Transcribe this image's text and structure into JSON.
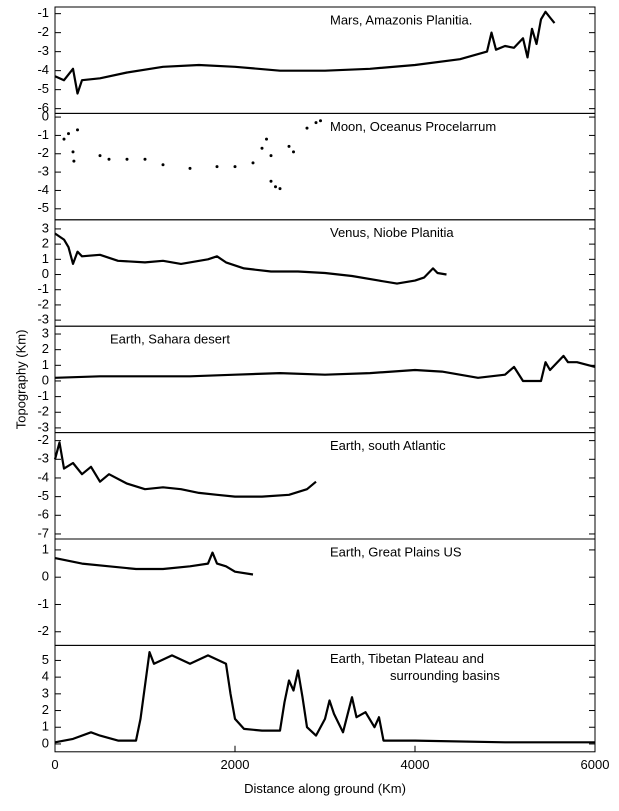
{
  "chart_data": [
    {
      "type": "line",
      "annotation": [
        "Mars, Amazonis Planitia."
      ],
      "color": "#000000",
      "xlim": [
        0,
        6000
      ],
      "ylim": [
        -6.25,
        -0.65
      ],
      "yticks": [
        -1,
        -2,
        -3,
        -4,
        -5,
        -6
      ],
      "x": [
        0,
        100,
        200,
        250,
        300,
        500,
        800,
        1200,
        1600,
        2000,
        2500,
        3000,
        3500,
        4000,
        4500,
        4800,
        4850,
        4900,
        5000,
        5100,
        5200,
        5250,
        5300,
        5350,
        5400,
        5450,
        5500,
        5550
      ],
      "values": [
        -4.3,
        -4.5,
        -3.9,
        -5.2,
        -4.5,
        -4.4,
        -4.1,
        -3.8,
        -3.7,
        -3.8,
        -4.0,
        -4.0,
        -3.9,
        -3.7,
        -3.4,
        -3.0,
        -2.0,
        -2.9,
        -2.7,
        -2.8,
        -2.3,
        -3.3,
        -1.8,
        -2.6,
        -1.3,
        -0.9,
        -1.2,
        -1.5
      ]
    },
    {
      "type": "scatter",
      "annotation": [
        "Moon, Oceanus Procelarrum"
      ],
      "color": "#000000",
      "xlim": [
        0,
        6000
      ],
      "ylim": [
        -5.6,
        0.2
      ],
      "yticks": [
        0,
        -1,
        -2,
        -3,
        -4,
        -5
      ],
      "x": [
        100,
        150,
        200,
        210,
        250,
        500,
        600,
        800,
        1000,
        1200,
        1500,
        1800,
        2000,
        2200,
        2300,
        2350,
        2400,
        2400,
        2450,
        2500,
        2600,
        2650,
        2800,
        2900,
        2950
      ],
      "values": [
        -1.2,
        -0.9,
        -1.9,
        -2.4,
        -0.7,
        -2.1,
        -2.3,
        -2.3,
        -2.3,
        -2.6,
        -2.8,
        -2.7,
        -2.7,
        -2.5,
        -1.7,
        -1.2,
        -2.1,
        -3.5,
        -3.8,
        -3.9,
        -1.6,
        -1.9,
        -0.6,
        -0.3,
        -0.2
      ]
    },
    {
      "type": "line",
      "annotation": [
        "Venus, Niobe Planitia"
      ],
      "color": "#000000",
      "xlim": [
        0,
        6000
      ],
      "ylim": [
        -3.4,
        3.6
      ],
      "yticks": [
        3,
        2,
        1,
        0,
        -1,
        -2,
        -3
      ],
      "x": [
        0,
        100,
        150,
        200,
        250,
        300,
        500,
        700,
        1000,
        1200,
        1400,
        1700,
        1800,
        1900,
        2100,
        2400,
        2700,
        3000,
        3300,
        3600,
        3800,
        4000,
        4100,
        4200,
        4250,
        4350
      ],
      "values": [
        2.7,
        2.3,
        1.8,
        0.7,
        1.5,
        1.2,
        1.3,
        0.9,
        0.8,
        0.9,
        0.7,
        1.0,
        1.2,
        0.8,
        0.4,
        0.2,
        0.2,
        0.1,
        -0.1,
        -0.4,
        -0.6,
        -0.4,
        -0.2,
        0.4,
        0.1,
        0.0
      ]
    },
    {
      "type": "line",
      "annotation": [
        "Earth, Sahara desert"
      ],
      "ylabel": "Topography (Km)",
      "color": "#000000",
      "xlim": [
        0,
        6000
      ],
      "ylim": [
        -3.3,
        3.5
      ],
      "yticks": [
        3,
        2,
        1,
        0,
        -1,
        -2,
        -3
      ],
      "x": [
        0,
        500,
        1000,
        1500,
        2000,
        2500,
        3000,
        3500,
        4000,
        4300,
        4700,
        5000,
        5100,
        5200,
        5400,
        5450,
        5500,
        5650,
        5700,
        5800,
        6000
      ],
      "values": [
        0.2,
        0.3,
        0.3,
        0.3,
        0.4,
        0.5,
        0.4,
        0.5,
        0.7,
        0.6,
        0.2,
        0.4,
        0.9,
        0.0,
        0.0,
        1.2,
        0.7,
        1.6,
        1.2,
        1.2,
        0.9
      ]
    },
    {
      "type": "line",
      "annotation": [
        "Earth, south Atlantic"
      ],
      "color": "#000000",
      "xlim": [
        0,
        6000
      ],
      "ylim": [
        -7.27,
        -1.57
      ],
      "yticks": [
        -2,
        -3,
        -4,
        -5,
        -6,
        -7
      ],
      "x": [
        0,
        50,
        100,
        200,
        300,
        400,
        500,
        600,
        800,
        1000,
        1200,
        1400,
        1600,
        1800,
        2000,
        2300,
        2600,
        2800,
        2900
      ],
      "values": [
        -3.0,
        -2.1,
        -3.5,
        -3.2,
        -3.8,
        -3.4,
        -4.2,
        -3.8,
        -4.3,
        -4.6,
        -4.5,
        -4.6,
        -4.8,
        -4.9,
        -5.0,
        -5.0,
        -4.9,
        -4.6,
        -4.2
      ]
    },
    {
      "type": "line",
      "annotation": [
        "Earth, Great Plains US"
      ],
      "color": "#000000",
      "xlim": [
        0,
        6000
      ],
      "ylim": [
        -2.5,
        1.4
      ],
      "yticks": [
        1,
        0,
        -1,
        -2
      ],
      "x": [
        0,
        300,
        600,
        900,
        1200,
        1500,
        1700,
        1750,
        1800,
        1900,
        2000,
        2200
      ],
      "values": [
        0.7,
        0.5,
        0.4,
        0.3,
        0.3,
        0.4,
        0.5,
        0.9,
        0.5,
        0.4,
        0.2,
        0.1
      ]
    },
    {
      "type": "line",
      "annotation": [
        "Earth, Tibetan Plateau and",
        "surrounding basins"
      ],
      "color": "#000000",
      "xlim": [
        0,
        6000
      ],
      "ylim": [
        -0.47,
        5.9
      ],
      "yticks": [
        0,
        1,
        2,
        3,
        4,
        5
      ],
      "xticks": [
        0,
        2000,
        4000,
        6000
      ],
      "xlabel": "Distance along ground (Km)",
      "x": [
        0,
        200,
        400,
        500,
        700,
        900,
        950,
        1000,
        1050,
        1100,
        1300,
        1500,
        1700,
        1900,
        1950,
        2000,
        2100,
        2300,
        2500,
        2550,
        2600,
        2650,
        2700,
        2750,
        2800,
        2900,
        3000,
        3050,
        3100,
        3200,
        3300,
        3350,
        3450,
        3550,
        3600,
        3650,
        4000,
        5000,
        6000
      ],
      "values": [
        0.1,
        0.3,
        0.7,
        0.5,
        0.2,
        0.2,
        1.5,
        3.5,
        5.5,
        4.8,
        5.3,
        4.8,
        5.3,
        4.8,
        3.0,
        1.5,
        0.9,
        0.8,
        0.8,
        2.5,
        3.8,
        3.2,
        4.4,
        2.8,
        1.0,
        0.5,
        1.5,
        2.6,
        1.8,
        0.7,
        2.8,
        1.6,
        1.9,
        1.0,
        1.6,
        0.2,
        0.2,
        0.1,
        0.1
      ]
    }
  ]
}
